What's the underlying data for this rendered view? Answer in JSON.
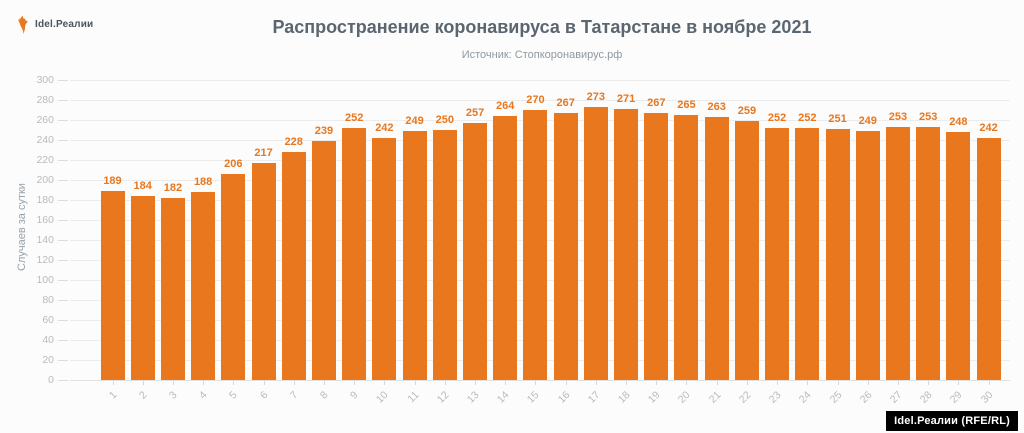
{
  "logo": {
    "text": "Idel.Реалии"
  },
  "title": "Распространение коронавируса в Татарстане в ноябре 2021",
  "subtitle": "Источник: Стопкоронавирус.рф",
  "watermark": "Idel.Реалии (RFE/RL)",
  "colors": {
    "bar": "#e8771e",
    "value_label": "#e8771e",
    "title": "#5b6670",
    "subtitle": "#8e99a1",
    "axis_text": "#b6bcc1",
    "gridline": "#ececec",
    "watermark_bg": "#000000",
    "watermark_text": "#ffffff"
  },
  "chart_data": {
    "type": "bar",
    "title": "Распространение коронавируса в Татарстане в ноябре 2021",
    "subtitle": "Источник: Стопкоронавирус.рф",
    "xlabel": "",
    "ylabel": "Случаев за сутки",
    "ylim": [
      0,
      300
    ],
    "ytick_step": 20,
    "grid": true,
    "legend_position": "none",
    "categories": [
      "1",
      "2",
      "3",
      "4",
      "5",
      "6",
      "7",
      "8",
      "9",
      "10",
      "11",
      "12",
      "13",
      "14",
      "15",
      "16",
      "17",
      "18",
      "19",
      "20",
      "21",
      "22",
      "23",
      "24",
      "25",
      "26",
      "27",
      "28",
      "29",
      "30"
    ],
    "values": [
      189,
      184,
      182,
      188,
      206,
      217,
      228,
      239,
      252,
      242,
      249,
      250,
      257,
      264,
      270,
      267,
      273,
      271,
      267,
      265,
      263,
      259,
      252,
      252,
      251,
      249,
      253,
      253,
      248,
      242
    ]
  }
}
